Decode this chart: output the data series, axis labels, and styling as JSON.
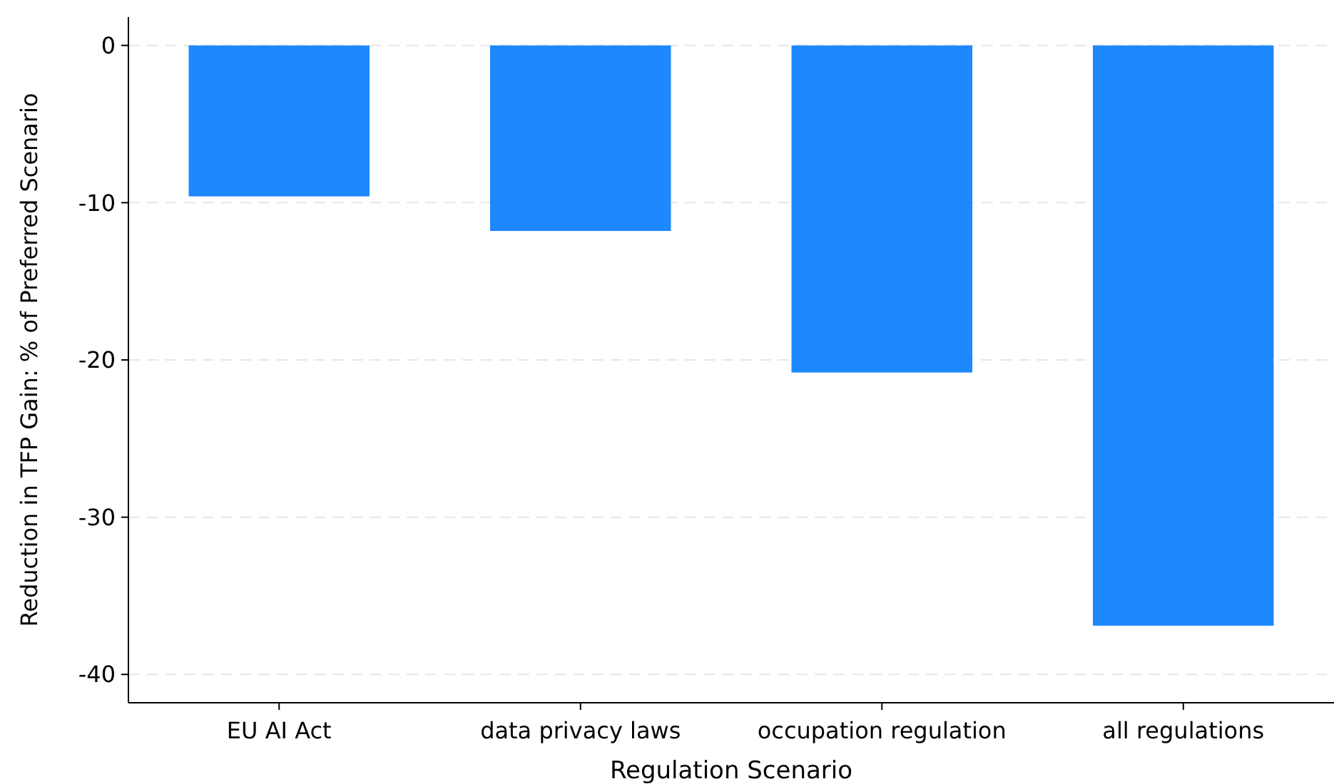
{
  "chart_data": {
    "type": "bar",
    "xlabel": "Regulation Scenario",
    "ylabel": "Reduction in TFP Gain: % of Preferred Scenario",
    "categories": [
      "EU AI Act",
      "data privacy laws",
      "occupation regulation",
      "all regulations"
    ],
    "values": [
      -9.6,
      -11.8,
      -20.8,
      -36.9
    ],
    "color": "#1e88ff",
    "ylim": [
      -41.8,
      1.8
    ],
    "yticks": [
      -40,
      -30,
      -20,
      -10,
      0
    ],
    "grid": "y"
  }
}
